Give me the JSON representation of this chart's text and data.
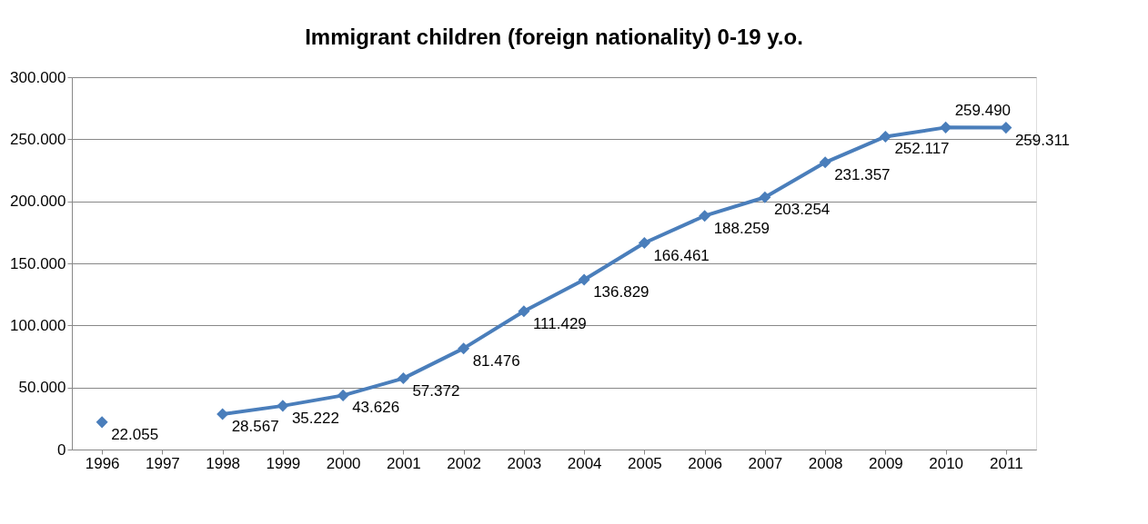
{
  "chart_data": {
    "type": "line",
    "title": "Immigrant children (foreign nationality)  0-19  y.o.",
    "categories": [
      "1996",
      "1997",
      "1998",
      "1999",
      "2000",
      "2001",
      "2002",
      "2003",
      "2004",
      "2005",
      "2006",
      "2007",
      "2008",
      "2009",
      "2010",
      "2011"
    ],
    "series": [
      {
        "color": "#4a7ebb",
        "values": [
          22055,
          null,
          28567,
          35222,
          43626,
          57372,
          81476,
          111429,
          136829,
          166461,
          188259,
          203254,
          231357,
          252117,
          259490,
          259311
        ],
        "value_labels": [
          "22.055",
          null,
          "28.567",
          "35.222",
          "43.626",
          "57.372",
          "81.476",
          "111.429",
          "136.829",
          "166.461",
          "188.259",
          "203.254",
          "231.357",
          "252.117",
          "259.490",
          "259.311"
        ]
      }
    ],
    "ylim": [
      0,
      300000
    ],
    "yticks": [
      {
        "value": 0,
        "label": "0"
      },
      {
        "value": 50000,
        "label": "50.000"
      },
      {
        "value": 100000,
        "label": "100.000"
      },
      {
        "value": 150000,
        "label": "150.000"
      },
      {
        "value": 200000,
        "label": "200.000"
      },
      {
        "value": 250000,
        "label": "250.000"
      },
      {
        "value": 300000,
        "label": "300.000"
      }
    ],
    "grid": "y",
    "marker": "diamond",
    "line_style": "solid"
  }
}
